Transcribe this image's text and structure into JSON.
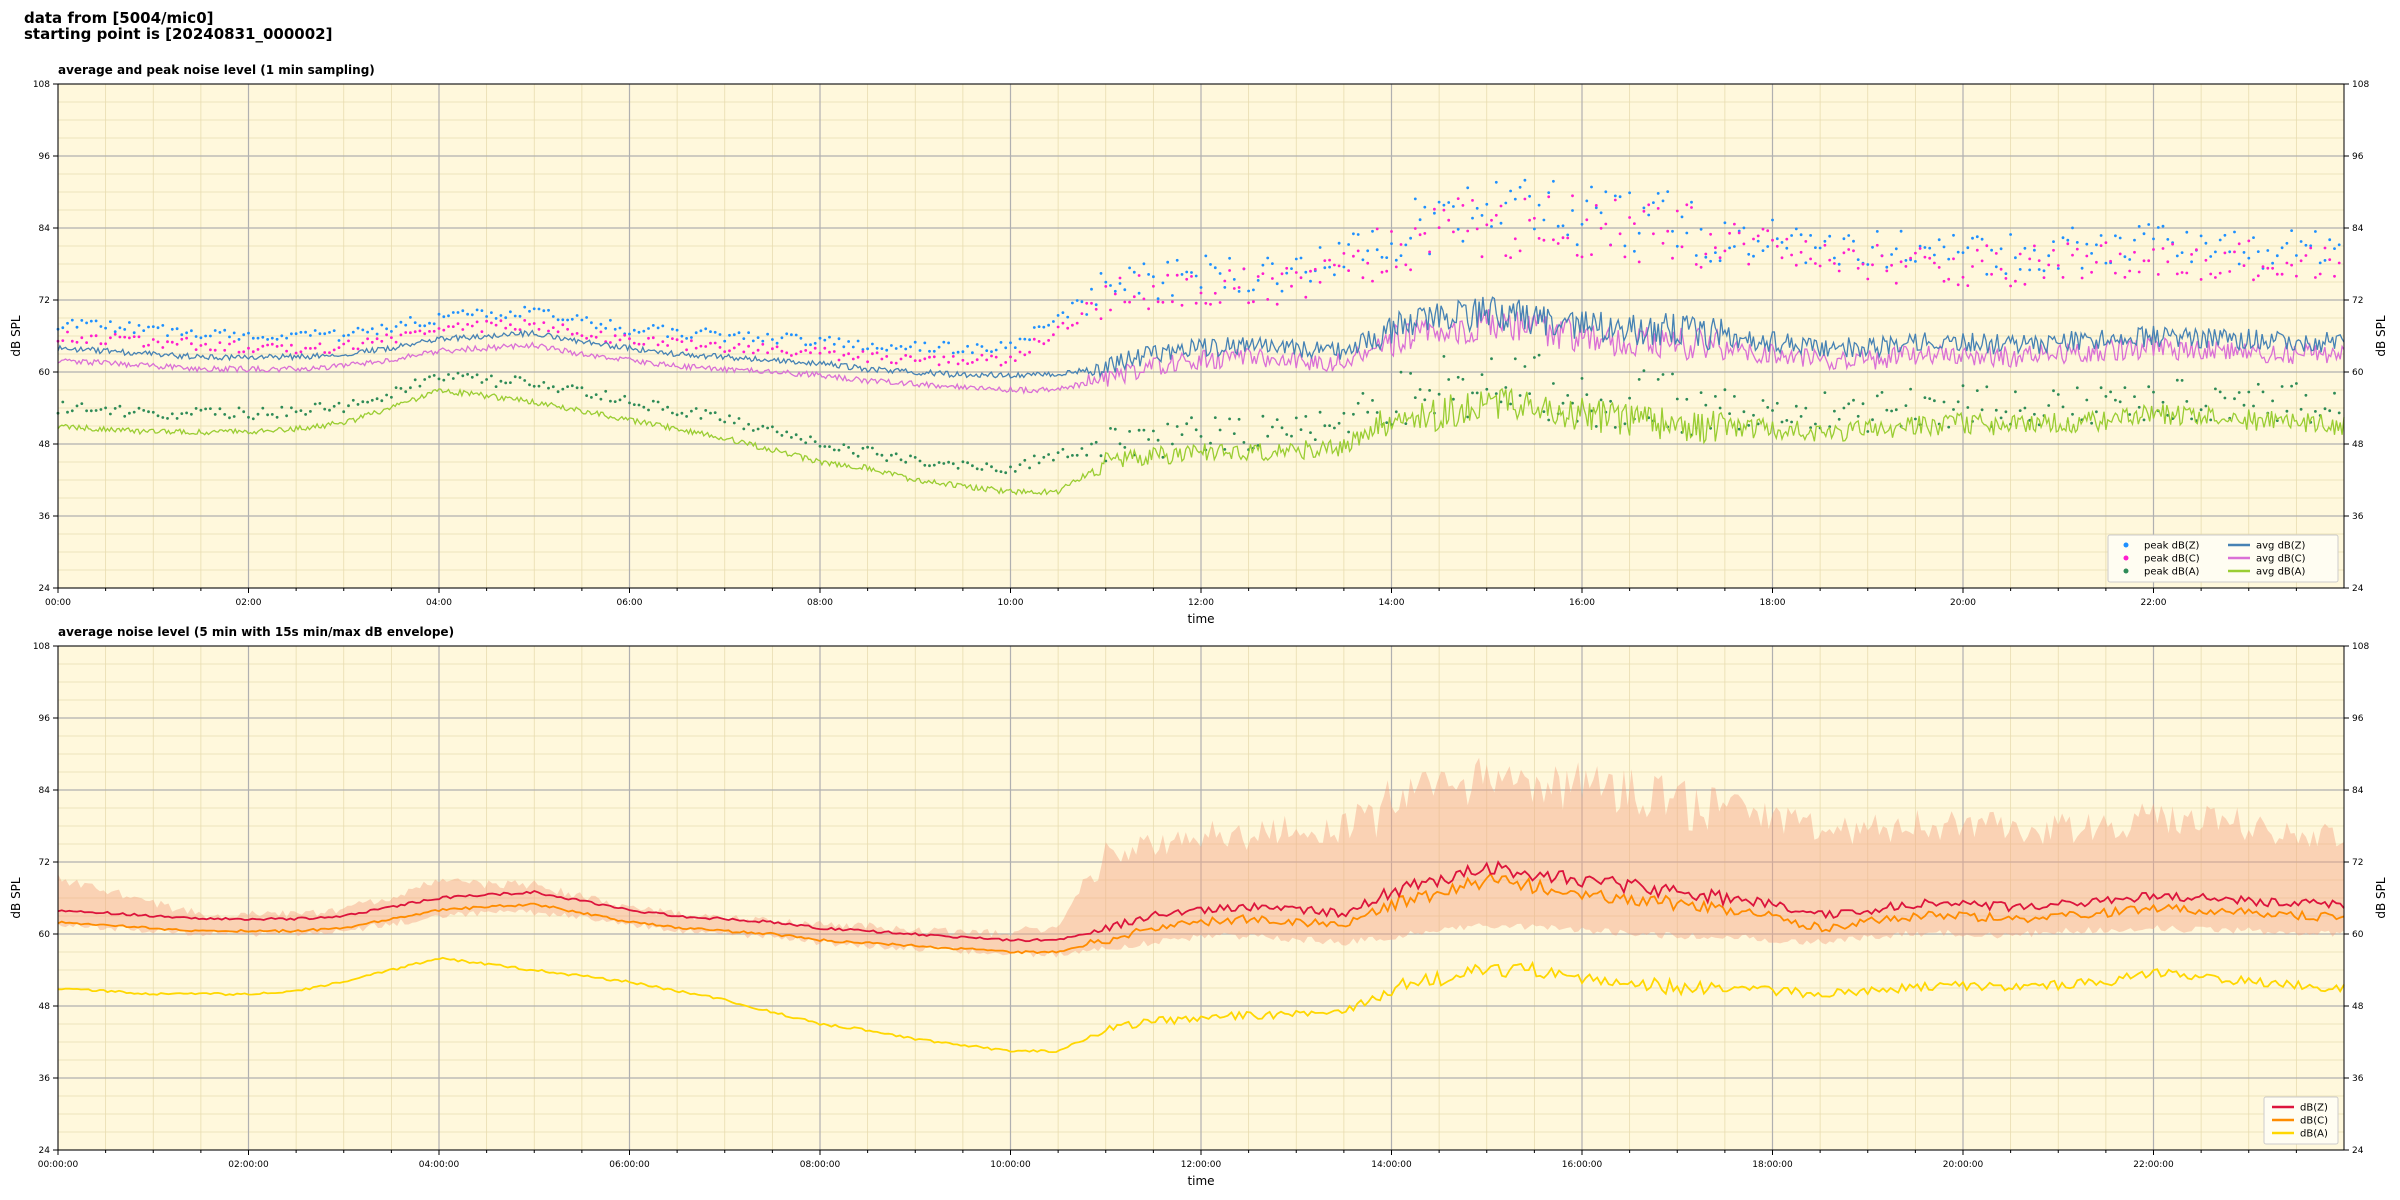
{
  "header": {
    "line1": "data from [5004/mic0]",
    "line2": "starting point is [20240831_000002]"
  },
  "colors": {
    "plot_bg": "#fff8dc",
    "z": "#4682b4",
    "c": "#da70d6",
    "a": "#9acd32",
    "peak_z": "#1e90ff",
    "peak_c": "#ff1dce",
    "peak_a": "#2e8b57",
    "b_z": "#dc143c",
    "b_c": "#ff8c00",
    "b_a": "#ffd700",
    "b_env": "#f4a582"
  },
  "chart_data": [
    {
      "id": "top",
      "type": "line",
      "title": "average and peak noise level (1 min sampling)",
      "xlabel": "time",
      "ylabel": "dB SPL",
      "ylabel_right": "dB SPL",
      "ylim": [
        24,
        108
      ],
      "xlim_hours": [
        0,
        24
      ],
      "y_ticks": [
        24,
        36,
        48,
        60,
        72,
        84,
        96,
        108
      ],
      "x_tick_labels": [
        "00:00",
        "02:00",
        "04:00",
        "06:00",
        "08:00",
        "10:00",
        "12:00",
        "14:00",
        "16:00",
        "18:00",
        "20:00",
        "22:00"
      ],
      "grid": true,
      "legend_position": "bottom-right",
      "legend": [
        {
          "label": "peak dB(Z)",
          "kind": "dot",
          "color": "#1e90ff"
        },
        {
          "label": "peak dB(C)",
          "kind": "dot",
          "color": "#ff1dce"
        },
        {
          "label": "peak dB(A)",
          "kind": "dot",
          "color": "#2e8b57"
        },
        {
          "label": "avg dB(Z)",
          "kind": "line",
          "color": "#4682b4"
        },
        {
          "label": "avg dB(C)",
          "kind": "line",
          "color": "#da70d6"
        },
        {
          "label": "avg dB(A)",
          "kind": "line",
          "color": "#9acd32"
        }
      ],
      "series": [
        {
          "name": "avg dB(Z)",
          "key": "z",
          "x_hours": [
            0,
            0.5,
            1,
            1.5,
            2,
            2.5,
            3,
            3.5,
            4,
            4.5,
            5,
            5.5,
            6,
            6.5,
            7,
            7.5,
            8,
            8.5,
            9,
            9.5,
            10,
            10.5,
            11,
            11.5,
            12,
            12.5,
            13,
            13.5,
            14,
            14.5,
            15,
            15.5,
            16,
            16.5,
            17,
            17.5,
            18,
            18.5,
            19,
            19.5,
            20,
            20.5,
            21,
            21.5,
            22,
            22.5,
            23,
            23.5,
            24
          ],
          "values": [
            64,
            63.5,
            63,
            62.5,
            62.5,
            62.5,
            63,
            64,
            65.5,
            66,
            66.5,
            65,
            64,
            63,
            62.5,
            62,
            61.5,
            60.5,
            60,
            59.5,
            59.5,
            59.5,
            61,
            63,
            64,
            64.5,
            64,
            63.5,
            67,
            69,
            70,
            69,
            68,
            67,
            67,
            66,
            65,
            64,
            64,
            65,
            65,
            64.5,
            65,
            65.5,
            66,
            65.5,
            65.5,
            65,
            65
          ]
        },
        {
          "name": "avg dB(C)",
          "key": "c",
          "x_hours": [
            0,
            0.5,
            1,
            1.5,
            2,
            2.5,
            3,
            3.5,
            4,
            4.5,
            5,
            5.5,
            6,
            6.5,
            7,
            7.5,
            8,
            8.5,
            9,
            9.5,
            10,
            10.5,
            11,
            11.5,
            12,
            12.5,
            13,
            13.5,
            14,
            14.5,
            15,
            15.5,
            16,
            16.5,
            17,
            17.5,
            18,
            18.5,
            19,
            19.5,
            20,
            20.5,
            21,
            21.5,
            22,
            22.5,
            23,
            23.5,
            24
          ],
          "values": [
            62,
            61.5,
            61,
            60.5,
            60.5,
            60.5,
            61,
            62,
            63.5,
            64,
            64.5,
            63,
            62,
            61,
            60.5,
            60,
            59.5,
            58.5,
            58,
            57.5,
            57,
            57,
            59,
            61,
            62,
            62.5,
            62,
            61.5,
            65,
            67,
            68,
            67,
            66,
            65,
            65,
            64,
            63,
            62,
            62,
            63,
            63,
            62.5,
            63,
            63.5,
            64,
            63.5,
            63.5,
            63,
            63
          ]
        },
        {
          "name": "avg dB(A)",
          "key": "a",
          "x_hours": [
            0,
            0.5,
            1,
            1.5,
            2,
            2.5,
            3,
            3.5,
            4,
            4.5,
            5,
            5.5,
            6,
            6.5,
            7,
            7.5,
            8,
            8.5,
            9,
            9.5,
            10,
            10.5,
            11,
            11.5,
            12,
            12.5,
            13,
            13.5,
            14,
            14.5,
            15,
            15.5,
            16,
            16.5,
            17,
            17.5,
            18,
            18.5,
            19,
            19.5,
            20,
            20.5,
            21,
            21.5,
            22,
            22.5,
            23,
            23.5,
            24
          ],
          "values": [
            51,
            50.5,
            50,
            50,
            50,
            50.5,
            51.5,
            54,
            57,
            56,
            55,
            53.5,
            52,
            50.5,
            49,
            47,
            45,
            44,
            42,
            41,
            40,
            40,
            45,
            46,
            46.5,
            46.5,
            47,
            47.5,
            52,
            53,
            55,
            54,
            53,
            52,
            51,
            51,
            50.5,
            50,
            50.5,
            51,
            51.5,
            51,
            51.5,
            52,
            53,
            52.5,
            52,
            51.5,
            51
          ]
        },
        {
          "name": "peak dB(Z)",
          "key": "peak_z",
          "x_hours": [
            0,
            1,
            2,
            3,
            4,
            5,
            6,
            7,
            8,
            9,
            10,
            11,
            12,
            13,
            14,
            15,
            16,
            17,
            18,
            19,
            20,
            21,
            22,
            23,
            24
          ],
          "values": [
            68,
            67,
            66,
            66,
            69,
            70,
            67,
            66,
            65,
            64,
            64,
            74,
            76,
            76,
            82,
            86,
            86,
            84,
            82,
            80,
            79,
            80,
            81,
            80,
            80
          ]
        },
        {
          "name": "peak dB(C)",
          "key": "peak_c",
          "x_hours": [
            0,
            1,
            2,
            3,
            4,
            5,
            6,
            7,
            8,
            9,
            10,
            11,
            12,
            13,
            14,
            15,
            16,
            17,
            18,
            19,
            20,
            21,
            22,
            23,
            24
          ],
          "values": [
            66,
            65,
            64,
            64,
            67,
            68,
            65,
            64,
            63,
            62,
            62,
            72,
            74,
            74,
            80,
            84,
            84,
            82,
            80,
            78,
            77,
            78,
            79,
            78,
            78
          ]
        },
        {
          "name": "peak dB(A)",
          "key": "peak_a",
          "x_hours": [
            0,
            1,
            2,
            3,
            4,
            5,
            6,
            7,
            8,
            9,
            10,
            11,
            12,
            13,
            14,
            15,
            16,
            17,
            18,
            19,
            20,
            21,
            22,
            23,
            24
          ],
          "values": [
            54,
            53,
            53,
            54,
            59,
            58,
            55,
            52,
            48,
            45,
            44,
            48,
            49,
            50,
            55,
            58,
            56,
            54,
            53,
            53,
            54,
            54,
            55,
            55,
            54
          ]
        }
      ]
    },
    {
      "id": "bottom",
      "type": "line",
      "title": "average noise level (5 min with 15s min/max dB envelope)",
      "xlabel": "time",
      "ylabel": "dB SPL",
      "ylabel_right": "dB SPL",
      "ylim": [
        24,
        108
      ],
      "xlim_hours": [
        0,
        24
      ],
      "y_ticks": [
        24,
        36,
        48,
        60,
        72,
        84,
        96,
        108
      ],
      "x_tick_labels": [
        "00:00:00",
        "02:00:00",
        "04:00:00",
        "06:00:00",
        "08:00:00",
        "10:00:00",
        "12:00:00",
        "14:00:00",
        "16:00:00",
        "18:00:00",
        "20:00:00",
        "22:00:00"
      ],
      "grid": true,
      "legend_position": "bottom-right",
      "legend": [
        {
          "label": "dB(Z)",
          "kind": "line",
          "color": "#dc143c"
        },
        {
          "label": "dB(C)",
          "kind": "line",
          "color": "#ff8c00"
        },
        {
          "label": "dB(A)",
          "kind": "line",
          "color": "#ffd700"
        }
      ],
      "series": [
        {
          "name": "dB(Z)",
          "key": "b_z",
          "x_hours": [
            0,
            0.5,
            1,
            1.5,
            2,
            2.5,
            3,
            3.5,
            4,
            4.5,
            5,
            5.5,
            6,
            6.5,
            7,
            7.5,
            8,
            8.5,
            9,
            9.5,
            10,
            10.5,
            11,
            11.5,
            12,
            12.5,
            13,
            13.5,
            14,
            14.5,
            15,
            15.5,
            16,
            16.5,
            17,
            17.5,
            18,
            18.5,
            19,
            19.5,
            20,
            20.5,
            21,
            21.5,
            22,
            22.5,
            23,
            23.5,
            24
          ],
          "values": [
            64,
            63.5,
            63,
            62.5,
            62.5,
            62.5,
            63,
            64.5,
            66,
            66.5,
            67,
            65.5,
            64,
            63,
            62.5,
            62,
            61,
            60.5,
            60,
            59.5,
            59,
            59,
            61,
            63,
            64,
            64.5,
            64,
            63.5,
            67,
            69,
            71,
            70,
            69,
            68,
            67,
            66,
            65,
            63,
            64,
            65,
            65,
            64.5,
            65,
            65.5,
            66.5,
            66,
            65.5,
            65,
            65
          ]
        },
        {
          "name": "dB(C)",
          "key": "b_c",
          "x_hours": [
            0,
            0.5,
            1,
            1.5,
            2,
            2.5,
            3,
            3.5,
            4,
            4.5,
            5,
            5.5,
            6,
            6.5,
            7,
            7.5,
            8,
            8.5,
            9,
            9.5,
            10,
            10.5,
            11,
            11.5,
            12,
            12.5,
            13,
            13.5,
            14,
            14.5,
            15,
            15.5,
            16,
            16.5,
            17,
            17.5,
            18,
            18.5,
            19,
            19.5,
            20,
            20.5,
            21,
            21.5,
            22,
            22.5,
            23,
            23.5,
            24
          ],
          "values": [
            62,
            61.5,
            61,
            60.5,
            60.5,
            60.5,
            61,
            62.5,
            64,
            64.5,
            65,
            63.5,
            62,
            61,
            60.5,
            60,
            59,
            58.5,
            58,
            57.5,
            57,
            57,
            59,
            61,
            62,
            62.5,
            62,
            61.5,
            65,
            67,
            69,
            68,
            67,
            66,
            65,
            64,
            63,
            61,
            62,
            63,
            63,
            62.5,
            63,
            63.5,
            64.5,
            64,
            63.5,
            63,
            63
          ]
        },
        {
          "name": "dB(A)",
          "key": "b_a",
          "x_hours": [
            0,
            0.5,
            1,
            1.5,
            2,
            2.5,
            3,
            3.5,
            4,
            4.5,
            5,
            5.5,
            6,
            6.5,
            7,
            7.5,
            8,
            8.5,
            9,
            9.5,
            10,
            10.5,
            11,
            11.5,
            12,
            12.5,
            13,
            13.5,
            14,
            14.5,
            15,
            15.5,
            16,
            16.5,
            17,
            17.5,
            18,
            18.5,
            19,
            19.5,
            20,
            20.5,
            21,
            21.5,
            22,
            22.5,
            23,
            23.5,
            24
          ],
          "values": [
            51,
            50.5,
            50,
            50,
            50,
            50.5,
            52,
            54,
            56,
            55,
            54,
            53,
            52,
            50.5,
            49,
            47,
            45,
            44,
            42.5,
            41.5,
            40.5,
            40.5,
            44,
            45.5,
            46,
            46.5,
            46.5,
            47,
            51,
            52.5,
            54,
            54,
            53,
            52,
            51,
            51,
            50.5,
            50,
            50.5,
            51,
            51.5,
            51,
            51.5,
            52,
            53.5,
            53,
            52,
            51.5,
            51
          ]
        },
        {
          "name": "envelope max",
          "key": "b_env_max",
          "x_hours": [
            0,
            0.5,
            1,
            1.5,
            2,
            2.5,
            3,
            3.5,
            4,
            4.5,
            5,
            5.5,
            6,
            6.5,
            7,
            7.5,
            8,
            8.5,
            9,
            9.5,
            10,
            10.5,
            11,
            11.5,
            12,
            12.5,
            13,
            13.5,
            14,
            14.5,
            15,
            15.5,
            16,
            16.5,
            17,
            17.5,
            18,
            18.5,
            19,
            19.5,
            20,
            20.5,
            21,
            21.5,
            22,
            22.5,
            23,
            23.5,
            24
          ],
          "values": [
            70,
            68,
            66,
            64,
            64,
            64,
            65,
            67,
            70,
            69,
            69,
            67,
            65,
            64,
            63.5,
            63,
            62.5,
            62,
            61.5,
            61,
            61,
            62,
            76,
            77,
            79,
            79,
            80,
            80,
            87,
            88,
            90,
            89,
            89,
            88,
            86,
            84,
            82,
            80,
            80,
            81,
            81,
            80,
            80,
            81,
            82,
            82,
            81,
            80,
            80
          ]
        },
        {
          "name": "envelope min",
          "key": "b_env_min",
          "x_hours": [
            0,
            0.5,
            1,
            1.5,
            2,
            2.5,
            3,
            3.5,
            4,
            4.5,
            5,
            5.5,
            6,
            6.5,
            7,
            7.5,
            8,
            8.5,
            9,
            9.5,
            10,
            10.5,
            11,
            11.5,
            12,
            12.5,
            13,
            13.5,
            14,
            14.5,
            15,
            15.5,
            16,
            16.5,
            17,
            17.5,
            18,
            18.5,
            19,
            19.5,
            20,
            20.5,
            21,
            21.5,
            22,
            22.5,
            23,
            23.5,
            24
          ],
          "values": [
            61,
            60.5,
            60,
            59.5,
            59.5,
            59.5,
            60,
            61,
            62.5,
            63,
            63,
            62,
            61,
            60,
            59.5,
            59,
            58,
            57.5,
            57,
            56.5,
            56,
            56,
            57,
            58,
            59,
            59,
            58.5,
            58,
            59,
            60,
            61,
            60.5,
            60,
            59.5,
            59,
            59,
            58.5,
            58,
            59,
            59.5,
            59.5,
            59,
            60,
            60,
            60.5,
            60,
            60,
            59.5,
            59.5
          ]
        }
      ]
    }
  ]
}
